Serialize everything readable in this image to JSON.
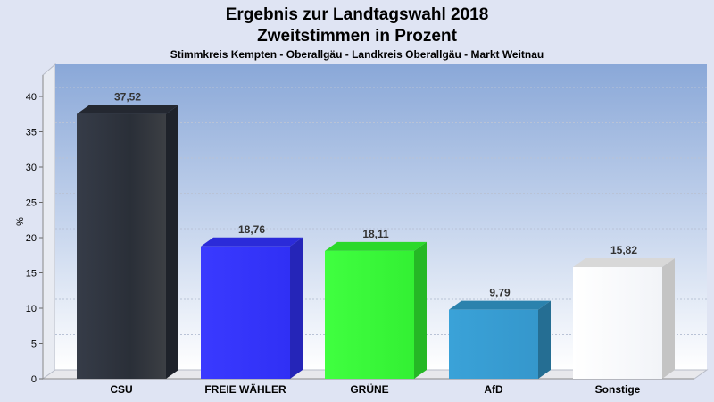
{
  "chart_data": {
    "type": "bar",
    "title": "Ergebnis zur Landtagswahl 2018",
    "subtitle": "Zweitstimmen in Prozent",
    "subsubtitle": "Stimmkreis Kempten - Oberallgäu - Landkreis Oberallgäu - Markt Weitnau",
    "ylabel": "%",
    "xlabel": "",
    "ylim": [
      0,
      40
    ],
    "yticks": [
      0,
      5,
      10,
      15,
      20,
      25,
      30,
      35,
      40
    ],
    "grid": true,
    "categories": [
      "CSU",
      "FREIE WÄHLER",
      "GRÜNE",
      "AfD",
      "Sonstige"
    ],
    "values": [
      37.52,
      18.76,
      18.11,
      9.79,
      15.82
    ],
    "value_labels": [
      "37,52",
      "18,76",
      "18,11",
      "9,79",
      "15,82"
    ],
    "colors": [
      "#2a2f3a",
      "#3333ff",
      "#33ff33",
      "#3399cc",
      "#ffffff"
    ]
  }
}
